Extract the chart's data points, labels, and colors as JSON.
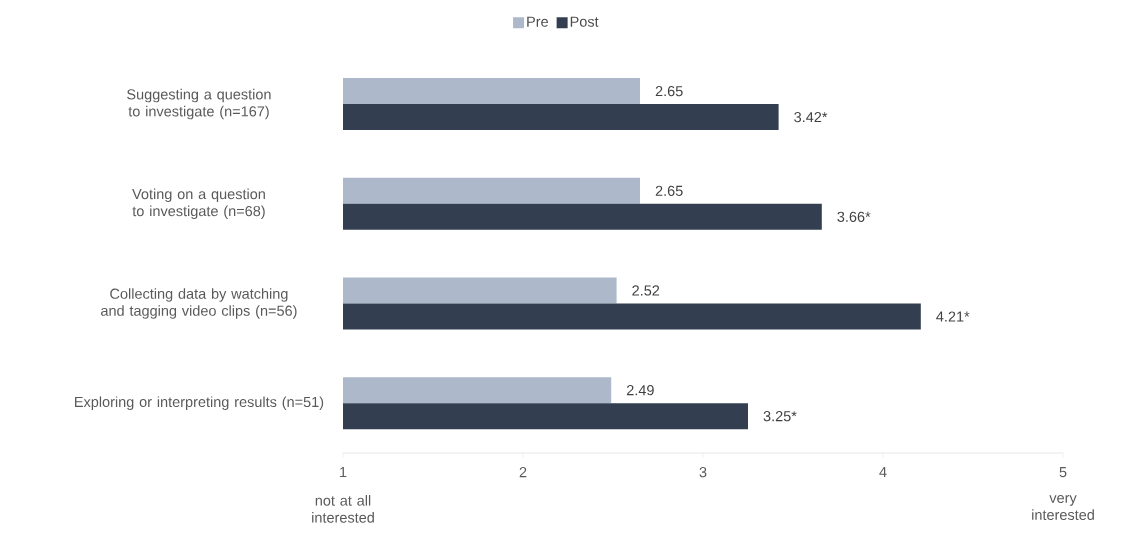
{
  "chart_data": {
    "type": "bar",
    "orientation": "horizontal",
    "categories": [
      "Suggesting a question to investigate (n=167)",
      "Voting on a question to investigate (n=68)",
      "Collecting data by watching and tagging video clips (n=56)",
      "Exploring or interpreting results (n=51)"
    ],
    "series": [
      {
        "name": "Pre",
        "color": "#adb9ca",
        "values": [
          2.65,
          2.65,
          2.52,
          2.49
        ],
        "value_labels": [
          "2.65",
          "2.65",
          "2.52",
          "2.49"
        ]
      },
      {
        "name": "Post",
        "color": "#333f50",
        "values": [
          3.42,
          3.66,
          4.21,
          3.25
        ],
        "value_labels": [
          "3.42*",
          "3.66*",
          "4.21*",
          "3.25*"
        ]
      }
    ],
    "xlim": [
      1,
      5
    ],
    "xticks": [
      1,
      2,
      3,
      4,
      5
    ],
    "annotations": [
      "not at all interested",
      "very interested"
    ],
    "legend": "top",
    "grid": false
  }
}
